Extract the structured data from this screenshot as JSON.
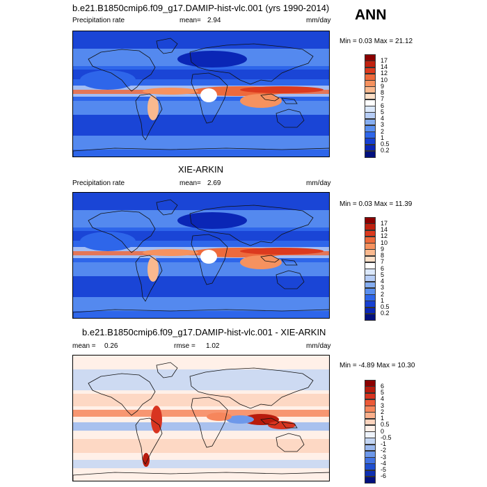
{
  "header": {
    "title": "b.e21.B1850cmip6.f09_g17.DAMIP-hist-vlc.001 (yrs 1990-2014)",
    "season": "ANN"
  },
  "panels": [
    {
      "title": "",
      "left_label": "Precipitation rate",
      "mean_label": "mean=",
      "mean_value": "2.94",
      "units": "mm/day",
      "minmax": "Min =   0.03 Max =  21.12",
      "levels": [
        "17",
        "14",
        "12",
        "10",
        "9",
        "8",
        "7",
        "6",
        "5",
        "4",
        "3",
        "2",
        "1",
        "0.5",
        "0.2"
      ],
      "colors": [
        "#8b0000",
        "#c0210f",
        "#dc3a1e",
        "#ee6a3c",
        "#f6925f",
        "#fab98f",
        "#fde0c8",
        "#ffffff",
        "#dbe8fb",
        "#b6cdf6",
        "#86aef1",
        "#5a8ff0",
        "#2e66ea",
        "#1640d2",
        "#0a26b6",
        "#02107e"
      ]
    },
    {
      "title": "XIE-ARKIN",
      "left_label": "Precipitation rate",
      "mean_label": "mean=",
      "mean_value": "2.69",
      "units": "mm/day",
      "minmax": "Min =   0.03 Max =  11.39",
      "levels": [
        "17",
        "14",
        "12",
        "10",
        "9",
        "8",
        "7",
        "6",
        "5",
        "4",
        "3",
        "2",
        "1",
        "0.5",
        "0.2"
      ],
      "colors": [
        "#8b0000",
        "#c0210f",
        "#dc3a1e",
        "#ee6a3c",
        "#f6925f",
        "#fab98f",
        "#fde0c8",
        "#ffffff",
        "#dbe8fb",
        "#b6cdf6",
        "#86aef1",
        "#5a8ff0",
        "#2e66ea",
        "#1640d2",
        "#0a26b6",
        "#02107e"
      ]
    },
    {
      "title": "b.e21.B1850cmip6.f09_g17.DAMIP-hist-vlc.001 - XIE-ARKIN",
      "left_label": "mean =",
      "mean_label": "0.26",
      "mean_value": "",
      "rmse_label": "rmse =",
      "rmse_value": "1.02",
      "units": "mm/day",
      "minmax": "Min =  -4.89 Max =  10.30",
      "levels": [
        "6",
        "5",
        "4",
        "3",
        "2",
        "1",
        "0.5",
        "0",
        "-0.5",
        "-1",
        "-2",
        "-3",
        "-4",
        "-5",
        "-6"
      ],
      "colors": [
        "#8b0000",
        "#b81b0d",
        "#d83420",
        "#ec5a38",
        "#f6865c",
        "#fbb08c",
        "#fdd3bd",
        "#fff0e8",
        "#eef3fb",
        "#c4d6f3",
        "#9ab8ee",
        "#6d98ea",
        "#4272e2",
        "#1f4fd0",
        "#0d2fb2",
        "#02107e"
      ]
    }
  ],
  "icons": {
    "map": "world-map-icon"
  }
}
